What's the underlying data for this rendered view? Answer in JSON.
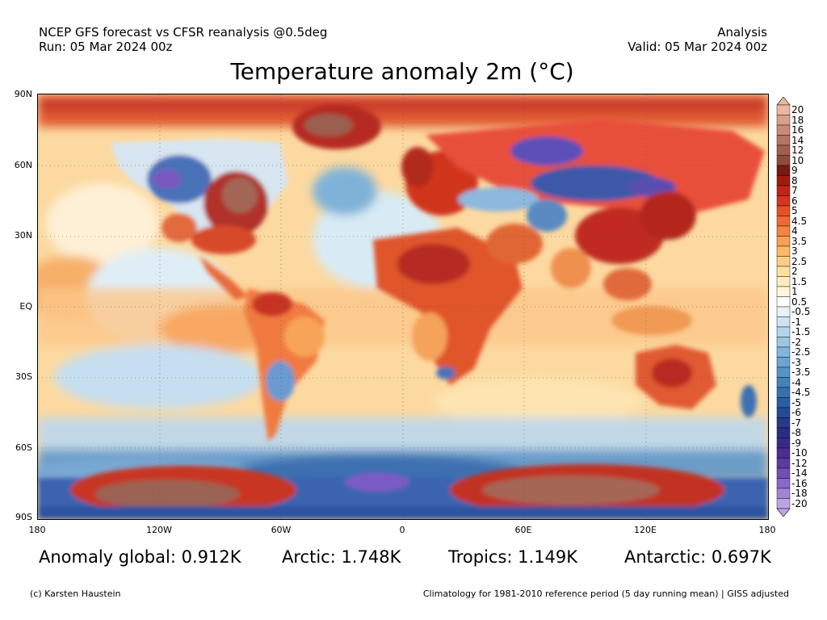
{
  "header": {
    "line1_left": "NCEP GFS forecast vs CFSR reanalysis @0.5deg",
    "line2_left": "Run: 05 Mar 2024 00z",
    "line1_right": "Analysis",
    "line2_right": "Valid: 05 Mar 2024 00z"
  },
  "title": "Temperature anomaly 2m (°C)",
  "lat_labels": [
    "90N",
    "60N",
    "30N",
    "EQ",
    "30S",
    "60S",
    "90S"
  ],
  "lon_labels": [
    "180",
    "120W",
    "60W",
    "0",
    "60E",
    "120E",
    "180"
  ],
  "stats": {
    "global": "Anomaly global: 0.912K",
    "arctic": "Arctic: 1.748K",
    "tropics": "Tropics: 1.149K",
    "antarctic": "Antarctic: 0.697K"
  },
  "footer": {
    "credit": "(c) Karsten Haustein",
    "note": "Climatology for 1981-2010 reference period (5 day running mean) | GISS adjusted"
  },
  "colorbar": {
    "labels": [
      "20",
      "18",
      "16",
      "14",
      "12",
      "10",
      "9",
      "8",
      "7",
      "6",
      "5",
      "4.5",
      "4",
      "3.5",
      "3",
      "2.5",
      "2",
      "1.5",
      "1",
      "0.5",
      "-0.5",
      "-1",
      "-1.5",
      "-2",
      "-2.5",
      "-3",
      "-3.5",
      "-4",
      "-4.5",
      "-5",
      "-6",
      "-7",
      "-8",
      "-9",
      "-10",
      "-12",
      "-14",
      "-16",
      "-18",
      "-20"
    ],
    "colors": [
      "#eab7a2",
      "#d9a08a",
      "#c88a76",
      "#b57464",
      "#a35e50",
      "#8f4a40",
      "#7a1a10",
      "#a01a10",
      "#c02418",
      "#d8341f",
      "#e65028",
      "#ef6a34",
      "#f4853f",
      "#f7a050",
      "#f9b965",
      "#fccf80",
      "#fde09c",
      "#fdedbc",
      "#fef6da",
      "#ffffff",
      "#e6f1f8",
      "#cce3f1",
      "#b3d5ea",
      "#9ac6e2",
      "#81b6da",
      "#6aa5d1",
      "#5694c7",
      "#4582bc",
      "#3770b0",
      "#2b5ea3",
      "#244a95",
      "#253a88",
      "#2c2c80",
      "#3a2a86",
      "#4a2f92",
      "#5c3aa0",
      "#7050b2",
      "#8868c4",
      "#a284d4",
      "#bca4e4"
    ]
  }
}
